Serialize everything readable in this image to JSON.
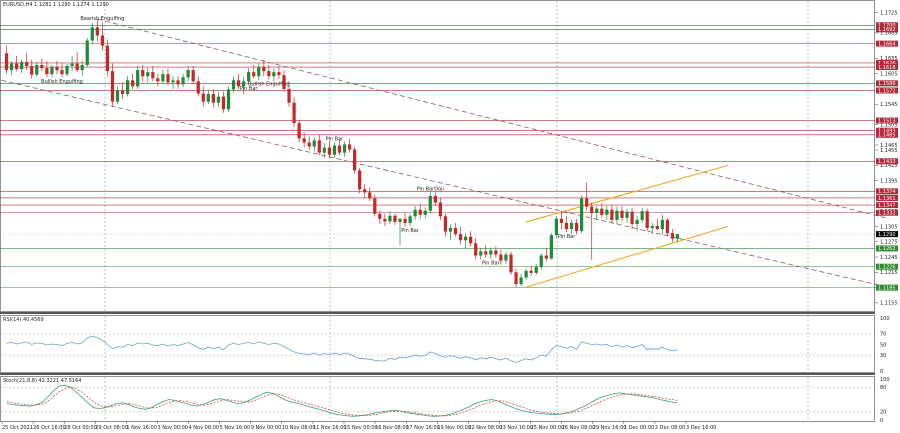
{
  "header": {
    "main": "EURUSD,H4  1.1281 1.1290 1.1274 1.1290",
    "rsi": "RSI(14) 40.4569",
    "stoch": "Stoch(21,8,8) 42.3221 47.5164"
  },
  "colors": {
    "bull": "#1e8a3a",
    "bear": "#c62828",
    "resistance": "#b22a3a",
    "support": "#2e8b2e",
    "channel": "#f2a626",
    "trend": "#8c5a66",
    "indicator": "#6a9fd8",
    "signal": "#cc3333"
  },
  "price_axis": {
    "ticks": [
      "1.1725",
      "1.1685",
      "1.1635",
      "1.1605",
      "1.1545",
      "1.1505",
      "1.1465",
      "1.1455",
      "1.1425",
      "1.1395",
      "1.1335",
      "1.1305",
      "1.1275",
      "1.1245",
      "1.1215",
      "1.1185",
      "1.1155"
    ]
  },
  "level_labels": [
    {
      "text": "1.1700",
      "price": 1.17,
      "kind": "resistance"
    },
    {
      "text": "1.1692",
      "price": 1.1692,
      "kind": "resistance"
    },
    {
      "text": "1.1664",
      "price": 1.1664,
      "kind": "resistance"
    },
    {
      "text": "1.1626",
      "price": 1.1626,
      "kind": "resistance"
    },
    {
      "text": "1.1618",
      "price": 1.1618,
      "kind": "resistance"
    },
    {
      "text": "1.1586",
      "price": 1.1586,
      "kind": "resistance"
    },
    {
      "text": "1.1572",
      "price": 1.1572,
      "kind": "resistance"
    },
    {
      "text": "1.1513",
      "price": 1.1513,
      "kind": "resistance"
    },
    {
      "text": "1.1493",
      "price": 1.1493,
      "kind": "resistance"
    },
    {
      "text": "1.1485",
      "price": 1.1485,
      "kind": "resistance"
    },
    {
      "text": "1.1433",
      "price": 1.1433,
      "kind": "resistance"
    },
    {
      "text": "1.1374",
      "price": 1.1374,
      "kind": "resistance"
    },
    {
      "text": "1.1361",
      "price": 1.1361,
      "kind": "resistance"
    },
    {
      "text": "1.1347",
      "price": 1.1347,
      "kind": "resistance"
    },
    {
      "text": "1.1332",
      "price": 1.1332,
      "kind": "resistance"
    },
    {
      "text": "1.1290",
      "price": 1.129,
      "kind": "current"
    },
    {
      "text": "1.1262",
      "price": 1.1262,
      "kind": "support"
    },
    {
      "text": "1.1226",
      "price": 1.1226,
      "kind": "support"
    },
    {
      "text": "1.1185",
      "price": 1.1185,
      "kind": "support"
    }
  ],
  "annotations": [
    {
      "text": "Bearish Engulfing",
      "bar": 19
    },
    {
      "text": "Bullish Engulfing",
      "bar": 11
    },
    {
      "text": "Pin Bar",
      "bar": 48
    },
    {
      "text": "Bullish Engulfing",
      "bar": 52
    },
    {
      "text": "Pin Bar",
      "bar": 65
    },
    {
      "text": "Pin Bar",
      "bar": 80
    },
    {
      "text": "Pin BarDoji",
      "bar": 84
    },
    {
      "text": "Pin Bar",
      "bar": 96
    },
    {
      "text": "Pin Bar",
      "bar": 111
    }
  ],
  "time_axis": {
    "labels": [
      "25 Oct 2021",
      "26 Oct 16:00",
      "28 Oct 00:00",
      "29 Oct 08:00",
      "1 Nov 16:00",
      "3 Nov 00:00",
      "4 Nov 08:00",
      "5 Nov 16:00",
      "9 Nov 00:00",
      "10 Nov 08:00",
      "11 Nov 16:00",
      "15 Nov 00:00",
      "16 Nov 08:00",
      "17 Nov 16:00",
      "19 Nov 00:00",
      "22 Nov 08:00",
      "23 Nov 16:00",
      "25 Nov 00:00",
      "26 Nov 08:00",
      "29 Nov 16:00",
      "1 Dec 00:00",
      "2 Dec 08:00",
      "3 Dec 16:00"
    ]
  },
  "rsi_axis": {
    "ticks": [
      "100",
      "70",
      "50",
      "30",
      "0"
    ]
  },
  "stoch_axis": {
    "ticks": [
      "100",
      "80",
      "20",
      "0"
    ]
  },
  "chart_data": {
    "type": "candlestick",
    "symbol": "EURUSD",
    "timeframe": "H4",
    "ylim": [
      1.1145,
      1.173
    ],
    "candles": [
      [
        1.1645,
        1.166,
        1.1605,
        1.1612
      ],
      [
        1.1612,
        1.163,
        1.1602,
        1.1625
      ],
      [
        1.1625,
        1.164,
        1.161,
        1.1614
      ],
      [
        1.1614,
        1.1632,
        1.1606,
        1.1628
      ],
      [
        1.1628,
        1.1646,
        1.1612,
        1.162
      ],
      [
        1.162,
        1.1632,
        1.1595,
        1.1603
      ],
      [
        1.1603,
        1.1628,
        1.16,
        1.1622
      ],
      [
        1.1622,
        1.1635,
        1.161,
        1.1616
      ],
      [
        1.1616,
        1.163,
        1.1598,
        1.1604
      ],
      [
        1.1604,
        1.1622,
        1.1598,
        1.1618
      ],
      [
        1.1618,
        1.163,
        1.1604,
        1.1612
      ],
      [
        1.1612,
        1.1626,
        1.1598,
        1.1604
      ],
      [
        1.1604,
        1.1624,
        1.16,
        1.162
      ],
      [
        1.162,
        1.164,
        1.161,
        1.1625
      ],
      [
        1.1625,
        1.1648,
        1.1608,
        1.1612
      ],
      [
        1.1612,
        1.163,
        1.16,
        1.1622
      ],
      [
        1.1622,
        1.1675,
        1.1618,
        1.167
      ],
      [
        1.167,
        1.1705,
        1.1662,
        1.1696
      ],
      [
        1.1696,
        1.1712,
        1.1668,
        1.168
      ],
      [
        1.168,
        1.1706,
        1.165,
        1.166
      ],
      [
        1.166,
        1.1672,
        1.16,
        1.161
      ],
      [
        1.161,
        1.1625,
        1.154,
        1.155
      ],
      [
        1.155,
        1.158,
        1.1545,
        1.1572
      ],
      [
        1.1572,
        1.1588,
        1.1555,
        1.1565
      ],
      [
        1.1565,
        1.16,
        1.156,
        1.1592
      ],
      [
        1.1592,
        1.1605,
        1.1575,
        1.158
      ],
      [
        1.158,
        1.162,
        1.1575,
        1.1612
      ],
      [
        1.1612,
        1.1622,
        1.159,
        1.16
      ],
      [
        1.16,
        1.1616,
        1.1588,
        1.1608
      ],
      [
        1.1608,
        1.162,
        1.159,
        1.1596
      ],
      [
        1.1596,
        1.1605,
        1.158,
        1.159
      ],
      [
        1.159,
        1.1612,
        1.1585,
        1.1604
      ],
      [
        1.1604,
        1.1615,
        1.1582,
        1.1588
      ],
      [
        1.1588,
        1.16,
        1.1575,
        1.1592
      ],
      [
        1.1592,
        1.16,
        1.1575,
        1.1584
      ],
      [
        1.1584,
        1.1605,
        1.1578,
        1.1598
      ],
      [
        1.1598,
        1.162,
        1.159,
        1.1612
      ],
      [
        1.1612,
        1.162,
        1.1585,
        1.159
      ],
      [
        1.159,
        1.16,
        1.156,
        1.1566
      ],
      [
        1.1566,
        1.158,
        1.154,
        1.155
      ],
      [
        1.155,
        1.1572,
        1.1545,
        1.1565
      ],
      [
        1.1565,
        1.1575,
        1.154,
        1.1548
      ],
      [
        1.1548,
        1.157,
        1.154,
        1.156
      ],
      [
        1.156,
        1.157,
        1.1528,
        1.1535
      ],
      [
        1.1535,
        1.158,
        1.153,
        1.1574
      ],
      [
        1.1574,
        1.16,
        1.1568,
        1.1592
      ],
      [
        1.1592,
        1.1605,
        1.1575,
        1.158
      ],
      [
        1.158,
        1.1598,
        1.1565,
        1.159
      ],
      [
        1.159,
        1.1616,
        1.1585,
        1.1608
      ],
      [
        1.1608,
        1.1622,
        1.1596,
        1.16
      ],
      [
        1.16,
        1.1625,
        1.1592,
        1.1618
      ],
      [
        1.1618,
        1.1632,
        1.16,
        1.161
      ],
      [
        1.161,
        1.1622,
        1.1594,
        1.16
      ],
      [
        1.16,
        1.1616,
        1.159,
        1.1608
      ],
      [
        1.1608,
        1.162,
        1.1595,
        1.1602
      ],
      [
        1.1602,
        1.1612,
        1.157,
        1.1575
      ],
      [
        1.1575,
        1.159,
        1.154,
        1.1548
      ],
      [
        1.1548,
        1.156,
        1.15,
        1.1508
      ],
      [
        1.1508,
        1.1515,
        1.147,
        1.1478
      ],
      [
        1.1478,
        1.149,
        1.146,
        1.147
      ],
      [
        1.147,
        1.1482,
        1.1455,
        1.1462
      ],
      [
        1.1462,
        1.148,
        1.1452,
        1.1474
      ],
      [
        1.1474,
        1.1485,
        1.1445,
        1.145
      ],
      [
        1.145,
        1.1468,
        1.144,
        1.146
      ],
      [
        1.146,
        1.1472,
        1.144,
        1.1446
      ],
      [
        1.1446,
        1.147,
        1.144,
        1.1464
      ],
      [
        1.1464,
        1.1476,
        1.1445,
        1.145
      ],
      [
        1.145,
        1.1472,
        1.1442,
        1.1466
      ],
      [
        1.1466,
        1.1478,
        1.145,
        1.1456
      ],
      [
        1.1456,
        1.1462,
        1.1408,
        1.1415
      ],
      [
        1.1415,
        1.142,
        1.137,
        1.1378
      ],
      [
        1.1378,
        1.1388,
        1.136,
        1.1372
      ],
      [
        1.1372,
        1.1382,
        1.1355,
        1.136
      ],
      [
        1.136,
        1.1368,
        1.1325,
        1.133
      ],
      [
        1.133,
        1.1336,
        1.131,
        1.132
      ],
      [
        1.132,
        1.133,
        1.1306,
        1.1315
      ],
      [
        1.1315,
        1.1335,
        1.131,
        1.1326
      ],
      [
        1.1326,
        1.133,
        1.1308,
        1.1314
      ],
      [
        1.1314,
        1.1322,
        1.1268,
        1.132
      ],
      [
        1.132,
        1.1332,
        1.1305,
        1.1312
      ],
      [
        1.1312,
        1.133,
        1.1306,
        1.1325
      ],
      [
        1.1325,
        1.1345,
        1.1318,
        1.1338
      ],
      [
        1.1338,
        1.135,
        1.132,
        1.1328
      ],
      [
        1.1328,
        1.1342,
        1.1322,
        1.1336
      ],
      [
        1.1336,
        1.1372,
        1.133,
        1.1365
      ],
      [
        1.1365,
        1.1372,
        1.1345,
        1.1352
      ],
      [
        1.1352,
        1.1362,
        1.1318,
        1.1325
      ],
      [
        1.1325,
        1.133,
        1.1285,
        1.1295
      ],
      [
        1.1295,
        1.131,
        1.1278,
        1.1302
      ],
      [
        1.1302,
        1.1312,
        1.1285,
        1.129
      ],
      [
        1.129,
        1.1305,
        1.127,
        1.1278
      ],
      [
        1.1278,
        1.1292,
        1.1262,
        1.1285
      ],
      [
        1.1285,
        1.1296,
        1.1266,
        1.1272
      ],
      [
        1.1272,
        1.1282,
        1.124,
        1.1248
      ],
      [
        1.1248,
        1.1262,
        1.124,
        1.1256
      ],
      [
        1.1256,
        1.1268,
        1.1244,
        1.125
      ],
      [
        1.125,
        1.1264,
        1.1242,
        1.1258
      ],
      [
        1.1258,
        1.1266,
        1.1244,
        1.125
      ],
      [
        1.125,
        1.126,
        1.123,
        1.1238
      ],
      [
        1.1238,
        1.1255,
        1.1232,
        1.125
      ],
      [
        1.125,
        1.1256,
        1.121,
        1.1215
      ],
      [
        1.1215,
        1.1222,
        1.1186,
        1.1192
      ],
      [
        1.1192,
        1.1212,
        1.1188,
        1.1205
      ],
      [
        1.1205,
        1.1222,
        1.12,
        1.1218
      ],
      [
        1.1218,
        1.1228,
        1.1208,
        1.1214
      ],
      [
        1.1214,
        1.1232,
        1.121,
        1.1226
      ],
      [
        1.1226,
        1.1252,
        1.122,
        1.1248
      ],
      [
        1.1248,
        1.1262,
        1.1236,
        1.1242
      ],
      [
        1.1242,
        1.1292,
        1.124,
        1.1288
      ],
      [
        1.1288,
        1.1325,
        1.1282,
        1.132
      ],
      [
        1.132,
        1.1335,
        1.13,
        1.1312
      ],
      [
        1.1312,
        1.1326,
        1.1294,
        1.13
      ],
      [
        1.13,
        1.1318,
        1.129,
        1.1312
      ],
      [
        1.1312,
        1.132,
        1.129,
        1.1296
      ],
      [
        1.1296,
        1.1366,
        1.1292,
        1.136
      ],
      [
        1.136,
        1.1392,
        1.1336,
        1.1344
      ],
      [
        1.1344,
        1.1352,
        1.124,
        1.1332
      ],
      [
        1.1332,
        1.1345,
        1.1318,
        1.134
      ],
      [
        1.134,
        1.135,
        1.1322,
        1.1328
      ],
      [
        1.1328,
        1.1345,
        1.1318,
        1.1338
      ],
      [
        1.1338,
        1.1348,
        1.1312,
        1.1318
      ],
      [
        1.1318,
        1.1344,
        1.131,
        1.1336
      ],
      [
        1.1336,
        1.1345,
        1.1315,
        1.1322
      ],
      [
        1.1322,
        1.134,
        1.1312,
        1.1334
      ],
      [
        1.1334,
        1.1342,
        1.13,
        1.131
      ],
      [
        1.131,
        1.1325,
        1.1296,
        1.1318
      ],
      [
        1.1318,
        1.1342,
        1.1312,
        1.1335
      ],
      [
        1.1335,
        1.134,
        1.1296,
        1.1302
      ],
      [
        1.1302,
        1.1312,
        1.129,
        1.1306
      ],
      [
        1.1306,
        1.132,
        1.1298,
        1.13
      ],
      [
        1.13,
        1.1328,
        1.129,
        1.1318
      ],
      [
        1.1318,
        1.1322,
        1.1286,
        1.1292
      ],
      [
        1.1292,
        1.13,
        1.1274,
        1.1281
      ],
      [
        1.1281,
        1.129,
        1.1274,
        1.129
      ]
    ],
    "rsi": [
      52,
      54,
      51,
      53,
      55,
      50,
      53,
      52,
      49,
      51,
      50,
      48,
      52,
      54,
      51,
      53,
      62,
      66,
      63,
      58,
      50,
      42,
      46,
      45,
      50,
      48,
      53,
      51,
      52,
      49,
      48,
      51,
      47,
      50,
      48,
      51,
      54,
      49,
      44,
      41,
      45,
      42,
      45,
      40,
      49,
      52,
      50,
      52,
      54,
      51,
      55,
      52,
      50,
      52,
      51,
      46,
      41,
      36,
      33,
      32,
      31,
      34,
      30,
      33,
      31,
      34,
      31,
      34,
      32,
      27,
      24,
      23,
      22,
      20,
      19,
      19,
      24,
      22,
      26,
      25,
      27,
      30,
      28,
      29,
      36,
      33,
      29,
      26,
      29,
      27,
      24,
      27,
      25,
      21,
      25,
      23,
      26,
      23,
      21,
      24,
      19,
      16,
      20,
      23,
      21,
      25,
      30,
      28,
      40,
      48,
      46,
      43,
      46,
      41,
      55,
      52,
      50,
      51,
      49,
      50,
      46,
      49,
      45,
      48,
      44,
      46,
      50,
      40,
      42,
      41,
      45,
      40,
      38,
      40
    ],
    "stoch_main": [
      40,
      38,
      36,
      35,
      34,
      37,
      42,
      55,
      70,
      82,
      85,
      80,
      68,
      55,
      42,
      30,
      28,
      30,
      35,
      40,
      42,
      38,
      32,
      28,
      26,
      30,
      38,
      45,
      50,
      48,
      44,
      40,
      36,
      34,
      38,
      44,
      50,
      52,
      48,
      44,
      40,
      42,
      48,
      55,
      62,
      68,
      65,
      58,
      50,
      45,
      42,
      38,
      34,
      30,
      26,
      22,
      18,
      14,
      12,
      10,
      9,
      10,
      12,
      15,
      18,
      20,
      22,
      24,
      22,
      18,
      16,
      14,
      12,
      10,
      9,
      10,
      12,
      15,
      20,
      26,
      32,
      40,
      45,
      48,
      50,
      46,
      40,
      34,
      28,
      24,
      20,
      18,
      16,
      15,
      14,
      14,
      15,
      18,
      22,
      28,
      34,
      42,
      50,
      56,
      60,
      64,
      66,
      64,
      62,
      60,
      58,
      56,
      54,
      50,
      47,
      44,
      42
    ],
    "stoch_signal": [
      45,
      42,
      40,
      38,
      36,
      36,
      38,
      45,
      56,
      68,
      76,
      80,
      76,
      68,
      56,
      44,
      36,
      32,
      32,
      35,
      38,
      40,
      38,
      34,
      30,
      29,
      31,
      36,
      42,
      46,
      47,
      45,
      42,
      38,
      36,
      38,
      42,
      47,
      50,
      48,
      46,
      44,
      44,
      48,
      54,
      60,
      64,
      63,
      58,
      52,
      48,
      44,
      40,
      36,
      32,
      28,
      24,
      20,
      16,
      14,
      12,
      11,
      11,
      12,
      14,
      17,
      19,
      21,
      22,
      21,
      19,
      17,
      15,
      13,
      11,
      10,
      10,
      12,
      15,
      19,
      24,
      30,
      36,
      41,
      45,
      47,
      46,
      42,
      37,
      32,
      27,
      23,
      20,
      18,
      17,
      16,
      15,
      16,
      18,
      22,
      27,
      33,
      40,
      46,
      52,
      57,
      61,
      63,
      64,
      63,
      61,
      59,
      57,
      55,
      52,
      50,
      48
    ]
  }
}
